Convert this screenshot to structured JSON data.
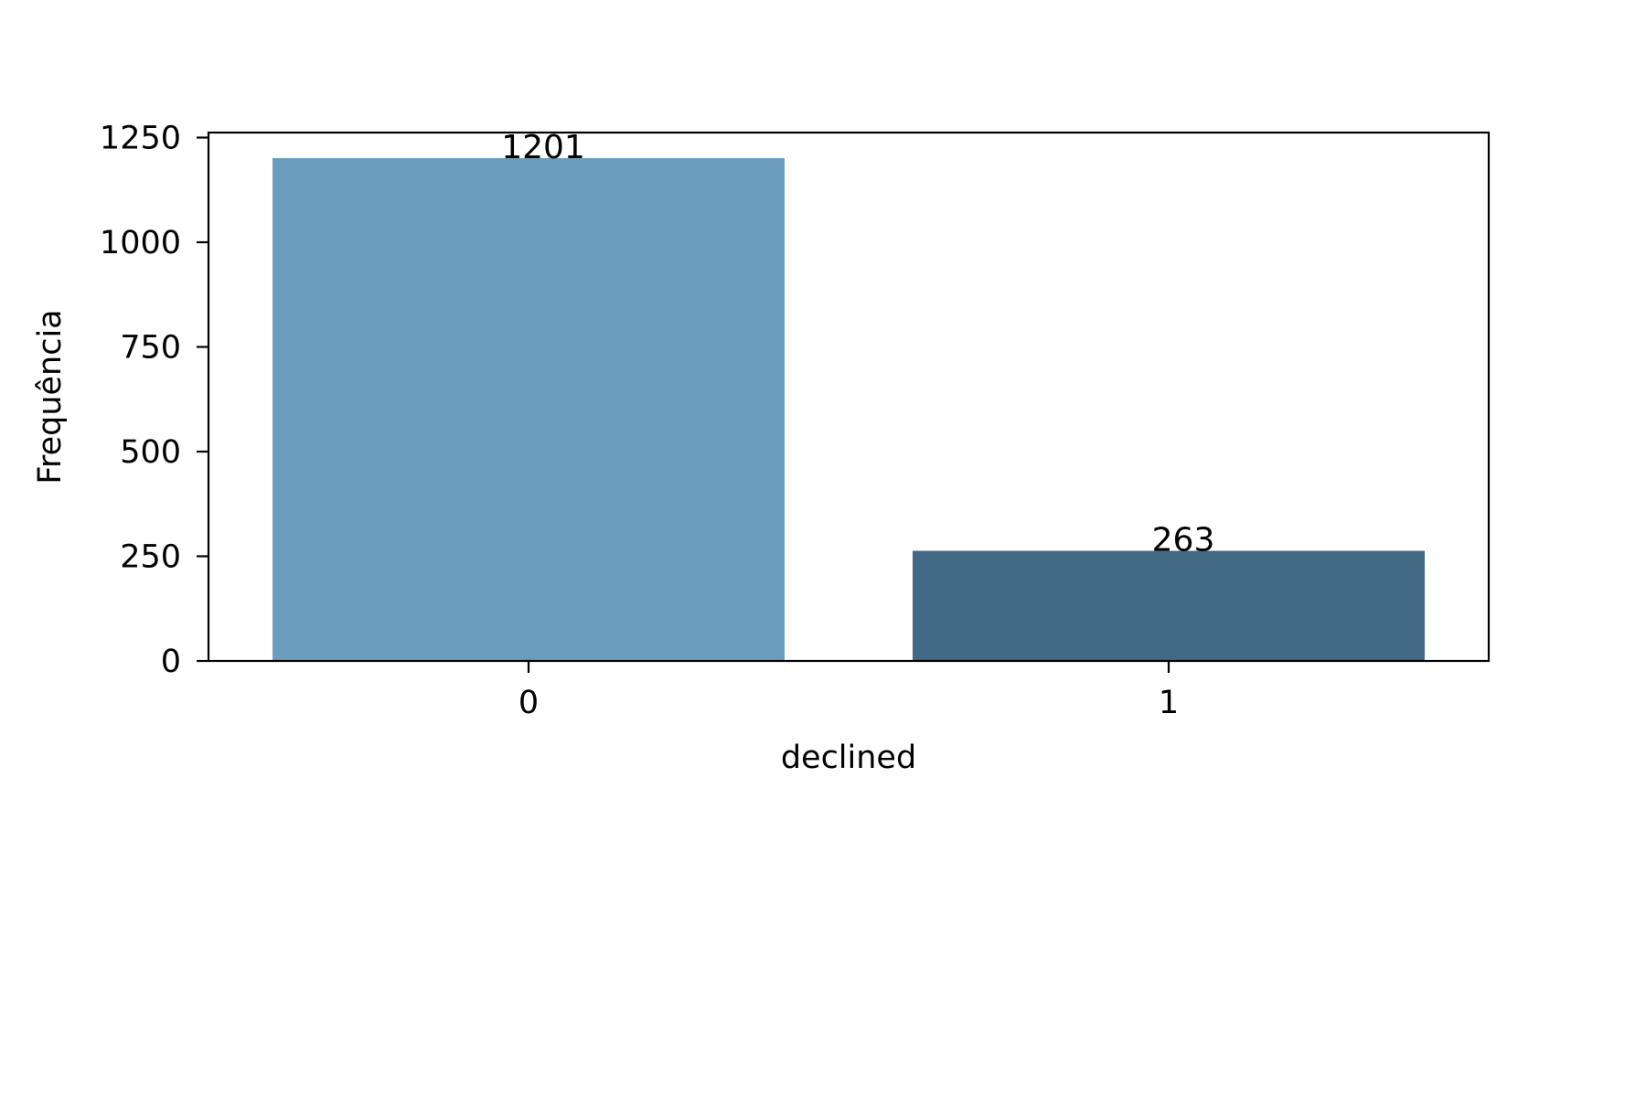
{
  "chart_data": {
    "type": "bar",
    "title": "",
    "xlabel": "declined",
    "ylabel": "Frequência",
    "categories": [
      "0",
      "1"
    ],
    "values": [
      1201,
      263
    ],
    "bar_colors": [
      "#6b9dbf",
      "#426985"
    ],
    "data_labels": [
      "1201",
      "263"
    ],
    "ylim": [
      0,
      1262
    ],
    "yticks": [
      0,
      250,
      500,
      750,
      1000,
      1250
    ],
    "ytick_labels": [
      "0",
      "250",
      "500",
      "750",
      "1000",
      "1250"
    ],
    "grid": false,
    "legend": "none"
  }
}
